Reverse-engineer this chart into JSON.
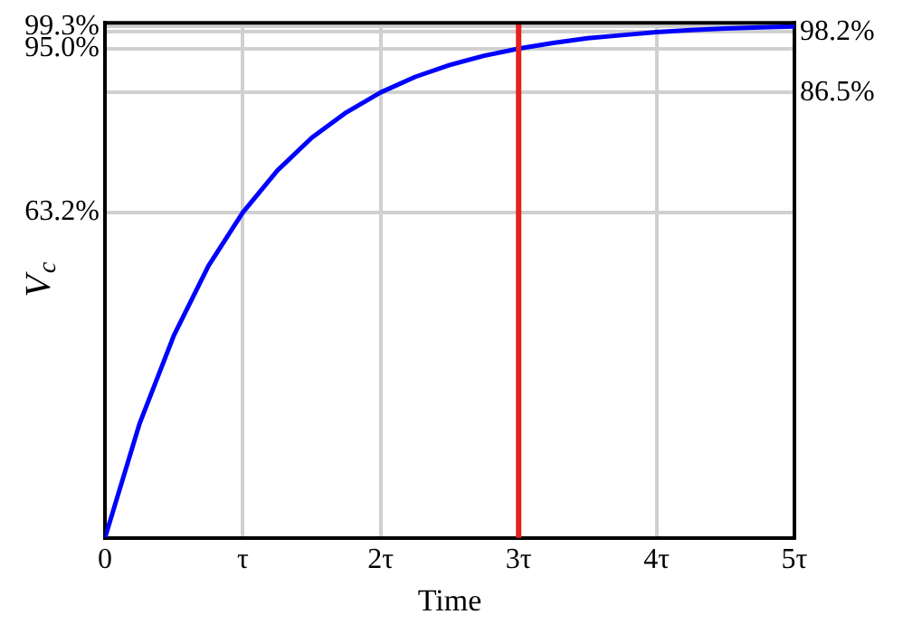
{
  "chart_data": {
    "type": "line",
    "xlabel": "Time",
    "ylabel": "V$_{c}$",
    "x": [
      0,
      0.25,
      0.5,
      0.75,
      1,
      1.25,
      1.5,
      1.75,
      2,
      2.25,
      2.5,
      2.75,
      3,
      3.25,
      3.5,
      3.75,
      4,
      4.25,
      4.5,
      4.75,
      5
    ],
    "series": [
      {
        "color": "#0000ff",
        "values": [
          0,
          22.1,
          39.3,
          52.8,
          63.2,
          71.3,
          77.7,
          82.6,
          86.5,
          89.5,
          91.8,
          93.6,
          95.0,
          96.1,
          97.0,
          97.6,
          98.2,
          98.6,
          98.9,
          99.1,
          99.3
        ]
      }
    ],
    "xlim": [
      0,
      5
    ],
    "xticks": [
      0,
      {
        "value": 1,
        "label": "τ"
      },
      {
        "value": 2,
        "label": "2τ"
      },
      {
        "value": 3,
        "label": "3τ"
      },
      {
        "value": 4,
        "label": "4τ"
      },
      {
        "value": 5,
        "label": "5τ"
      }
    ],
    "ylim": [
      0,
      100
    ],
    "yticks": [
      {
        "value": 63.2,
        "label": "63.2%"
      },
      {
        "value": 95.0,
        "label": "95.0%"
      },
      {
        "value": 99.3,
        "label": "99.3%"
      }
    ],
    "y2lim": [
      0,
      100
    ],
    "y2ticks": [
      {
        "value": 86.5,
        "label": "86.5%"
      },
      {
        "value": 98.2,
        "label": "98.2%"
      }
    ],
    "ref_lines": [
      {
        "axis": "x",
        "value": 3,
        "color": "#e82020"
      }
    ],
    "grid": true,
    "legend": false,
    "marker": "none",
    "line_style": "solid"
  }
}
